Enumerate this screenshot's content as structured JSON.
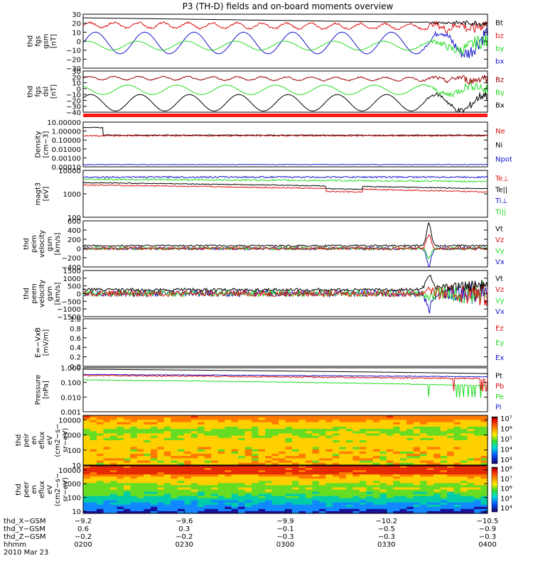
{
  "title": "P3 (TH-D) fields and on-board moments overview",
  "colors": {
    "black": "#000000",
    "red": "#dd1111",
    "green": "#22dd22",
    "blue": "#1515cc",
    "darkred": "#990000",
    "frame": "#000000"
  },
  "chart_data": [
    {
      "type": "line",
      "panel": "fgs-gsm",
      "ylabel": [
        "thd",
        "fgs",
        "gsm",
        "[nT]"
      ],
      "ylim": [
        -30,
        30
      ],
      "yticks": [
        "30",
        "20",
        "10",
        "0",
        "−10",
        "−20",
        "−30"
      ],
      "legend": [
        {
          "name": "Bt",
          "color": "black"
        },
        {
          "name": "bz",
          "color": "red"
        },
        {
          "name": "by",
          "color": "green"
        },
        {
          "name": "bx",
          "color": "blue"
        }
      ]
    },
    {
      "type": "line",
      "panel": "fgs-dsl",
      "ylabel": [
        "thd",
        "fgs",
        "dsl",
        "[nT]"
      ],
      "ylim": [
        -40,
        30
      ],
      "yticks": [
        "30",
        "20",
        "10",
        "0",
        "−10",
        "−20",
        "−30",
        "−40"
      ],
      "legend": [
        {
          "name": "Bz",
          "color": "darkred"
        },
        {
          "name": "By",
          "color": "green"
        },
        {
          "name": "Bx",
          "color": "black"
        }
      ]
    },
    {
      "type": "line",
      "panel": "density",
      "ylabel": [
        "Density",
        "[cm−3]"
      ],
      "scale": "log",
      "ylim": [
        0.0001,
        10
      ],
      "yticks": [
        "10.00000",
        "1.00000",
        "0.10000",
        "0.01000",
        "0.00100",
        "0.00010"
      ],
      "legend": [
        {
          "name": "Ne",
          "color": "red"
        },
        {
          "name": "Ni",
          "color": "black"
        },
        {
          "name": "Npot",
          "color": "blue"
        }
      ]
    },
    {
      "type": "line",
      "panel": "temperature",
      "ylabel": [
        "magt3",
        "[eV]"
      ],
      "scale": "log",
      "ylim": [
        100,
        10000
      ],
      "yticks": [
        "10000",
        "1000",
        "100"
      ],
      "legend": [
        {
          "name": "Te⊥",
          "color": "red"
        },
        {
          "name": "Te||",
          "color": "black"
        },
        {
          "name": "Ti⊥",
          "color": "blue"
        },
        {
          "name": "Ti||",
          "color": "green"
        }
      ]
    },
    {
      "type": "line",
      "panel": "ion-velocity",
      "ylabel": [
        "thd",
        "peim",
        "velocity",
        "gsm",
        "[km/s]"
      ],
      "ylim": [
        -400,
        600
      ],
      "yticks": [
        "600",
        "400",
        "200",
        "0",
        "−200",
        "−400"
      ],
      "legend": [
        {
          "name": "Vt",
          "color": "black"
        },
        {
          "name": "Vz",
          "color": "red"
        },
        {
          "name": "Vy",
          "color": "green"
        },
        {
          "name": "Vx",
          "color": "blue"
        }
      ]
    },
    {
      "type": "line",
      "panel": "electron-velocity",
      "ylabel": [
        "thd",
        "peem",
        "velocity",
        "gsm",
        "[km/s]"
      ],
      "ylim": [
        -1500,
        1500
      ],
      "yticks": [
        "1500",
        "1000",
        "500",
        "0",
        "−500",
        "−1000",
        "−1500"
      ],
      "legend": [
        {
          "name": "Vt",
          "color": "black"
        },
        {
          "name": "Vz",
          "color": "red"
        },
        {
          "name": "Vy",
          "color": "green"
        },
        {
          "name": "Vx",
          "color": "blue"
        }
      ]
    },
    {
      "type": "line",
      "panel": "e-field",
      "ylabel": [
        "E=−VxB",
        "[mV/m]"
      ],
      "ylim": [
        0,
        1
      ],
      "yticks": [
        "1.0",
        "0.8",
        "0.6",
        "0.4",
        "0.2",
        "0.0"
      ],
      "legend": [
        {
          "name": "Ez",
          "color": "red"
        },
        {
          "name": "Ey",
          "color": "green"
        },
        {
          "name": "Ex",
          "color": "blue"
        }
      ]
    },
    {
      "type": "line",
      "panel": "pressure",
      "ylabel": [
        "Pressure",
        "[nPa]"
      ],
      "scale": "log",
      "ylim": [
        0.001,
        1
      ],
      "yticks": [
        "1.000",
        "0.100",
        "0.010",
        "0.001"
      ],
      "legend": [
        {
          "name": "Pt",
          "color": "black"
        },
        {
          "name": "Pb",
          "color": "red"
        },
        {
          "name": "Pe",
          "color": "green"
        },
        {
          "name": "Pi",
          "color": "blue"
        }
      ]
    },
    {
      "type": "heatmap",
      "panel": "ion-spectrogram",
      "ylabel": [
        "thd",
        "peir",
        "en",
        "eflux",
        "eV",
        "(cm2−s−",
        "sr−eV)"
      ],
      "scale": "log",
      "ylim": [
        10,
        20000
      ],
      "yticks": [
        "10000",
        "1000",
        "100",
        "10"
      ],
      "colorbar": {
        "labels": [
          "10⁷",
          "10⁶",
          "10⁵",
          "10⁴",
          "10³"
        ]
      }
    },
    {
      "type": "heatmap",
      "panel": "electron-spectrogram",
      "ylabel": [
        "thd",
        "peer",
        "en",
        "eflux",
        "eV",
        "(cm2−s−",
        "sr−eV)"
      ],
      "scale": "log",
      "ylim": [
        7,
        20000
      ],
      "yticks": [
        "10000",
        "1000",
        "100",
        "10"
      ],
      "colorbar": {
        "labels": [
          "10⁸",
          "10⁷",
          "10⁶",
          "10⁵",
          "10⁴"
        ]
      }
    }
  ],
  "xaxis": {
    "rows": [
      {
        "label": "thd_X−GSM",
        "values": [
          "−9.2",
          "−9.6",
          "−9.9",
          "−10.2",
          "−10.5"
        ]
      },
      {
        "label": "thd_Y−GSM",
        "values": [
          "0.6",
          "0.3",
          "−0.1",
          "−0.5",
          "−0.9"
        ]
      },
      {
        "label": "thd_Z−GSM",
        "values": [
          "−0.2",
          "−0.2",
          "−0.3",
          "−0.3",
          "−0.3"
        ]
      },
      {
        "label": "hhmm",
        "values": [
          "0200",
          "0230",
          "0300",
          "0330",
          "0400"
        ]
      }
    ],
    "date": "2010 Mar 23"
  }
}
